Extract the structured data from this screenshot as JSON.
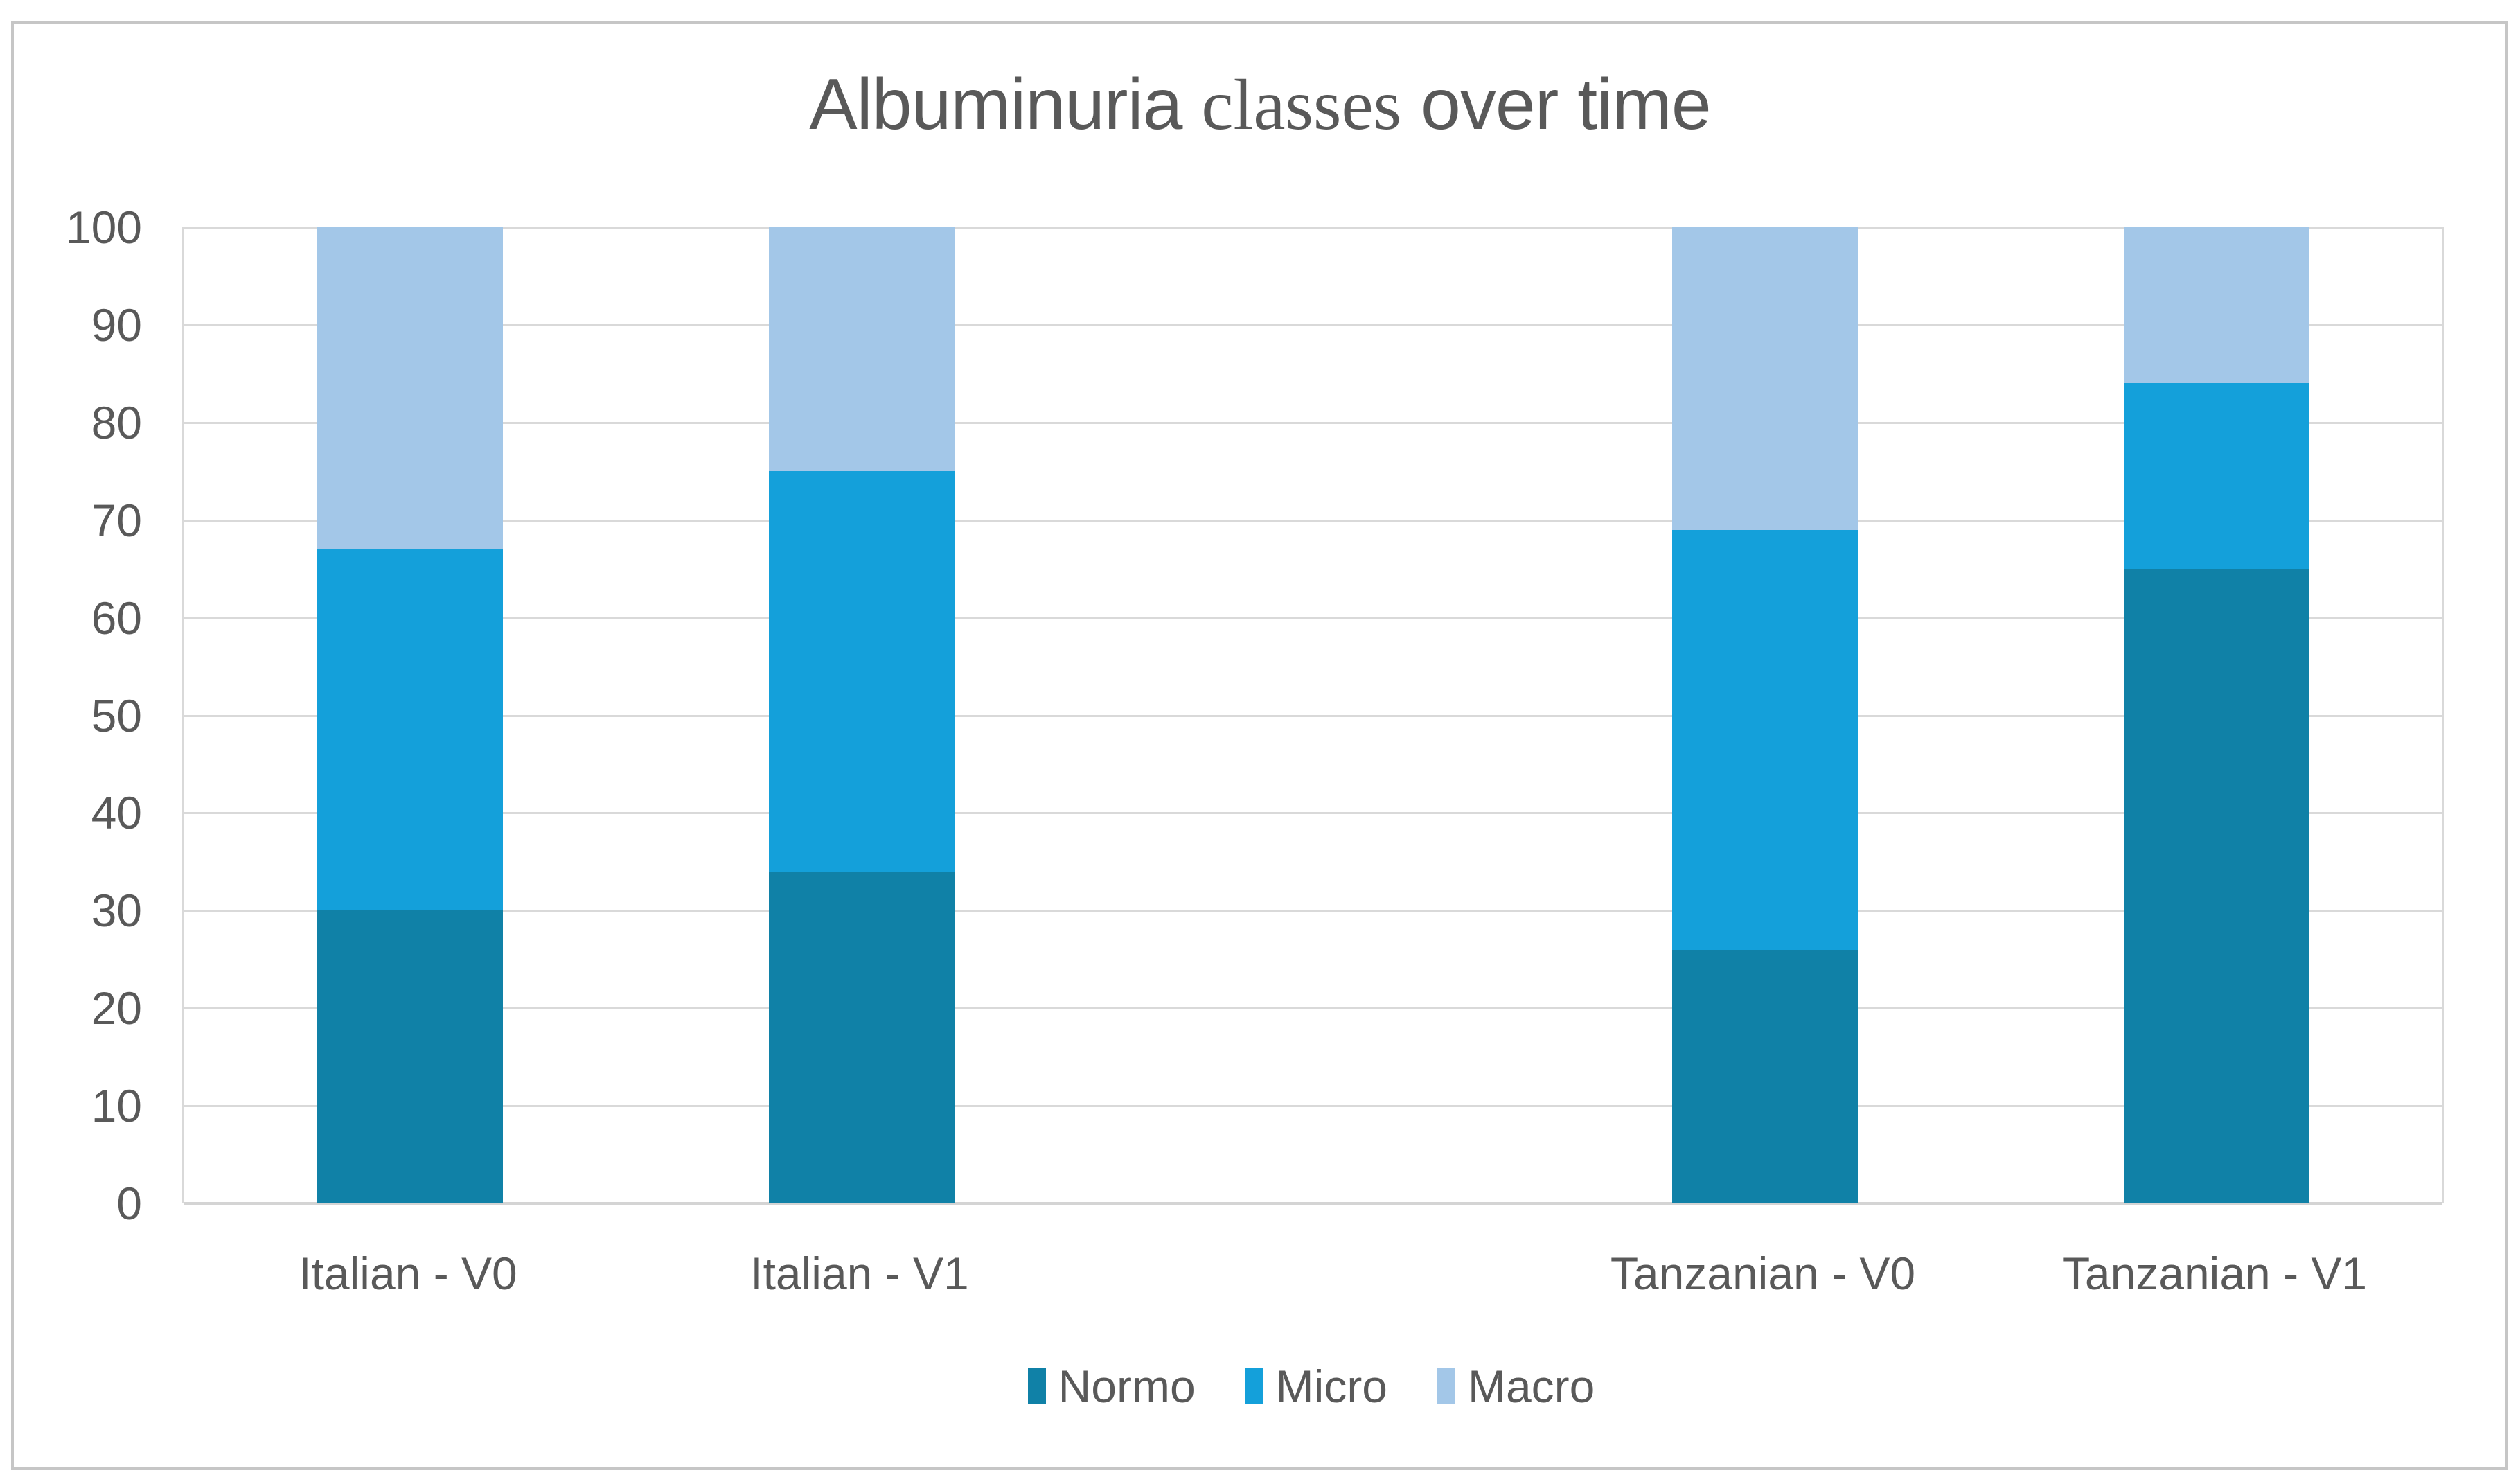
{
  "title": {
    "part1": "Albuminuria ",
    "part2": "classes",
    "part3": " over time"
  },
  "chart_data": {
    "type": "bar",
    "stacked": true,
    "title": "Albuminuria classes over time",
    "categories": [
      "Italian - V0",
      "Italian - V1",
      "Tanzanian - V0",
      "Tanzanian - V1"
    ],
    "series": [
      {
        "name": "Normo",
        "color": "#1081a7",
        "values": [
          30,
          34,
          26,
          65
        ]
      },
      {
        "name": "Micro",
        "color": "#14a0da",
        "values": [
          37,
          41,
          43,
          19
        ]
      },
      {
        "name": "Macro",
        "color": "#a3c7e8",
        "values": [
          33,
          25,
          31,
          16
        ]
      }
    ],
    "ylim": [
      0,
      100
    ],
    "ytick_step": 10,
    "yticks": [
      0,
      10,
      20,
      30,
      40,
      50,
      60,
      70,
      80,
      90,
      100
    ],
    "grid": true,
    "legend_position": "bottom",
    "layout": {
      "slot_count": 5,
      "category_slots": [
        0,
        1,
        3,
        4
      ],
      "note": "empty spacer slot between the two cohorts"
    }
  },
  "colors": {
    "text": "#595959",
    "gridline": "#d9d9d9",
    "axis_line": "#d4d4d4",
    "border": "#c6c6c6",
    "background": "#ffffff"
  }
}
